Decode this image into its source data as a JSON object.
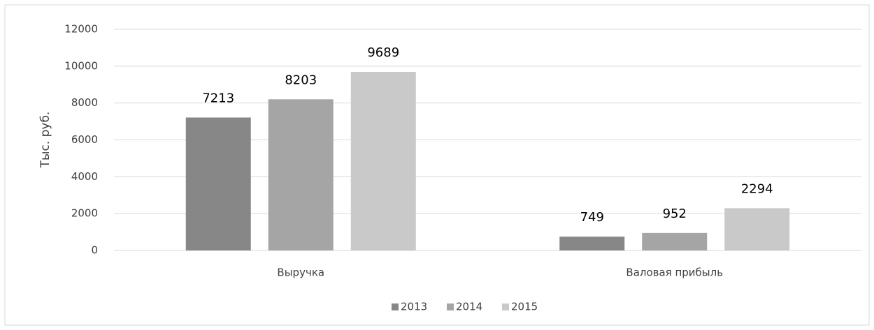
{
  "chart_data": {
    "type": "bar",
    "y_label": "Тыс. руб.",
    "categories": [
      "Выручка",
      "Валовая прибыль"
    ],
    "series": [
      {
        "name": "2013",
        "color": "#878787",
        "values": [
          7213,
          749
        ]
      },
      {
        "name": "2014",
        "color": "#a5a5a5",
        "values": [
          8203,
          952
        ]
      },
      {
        "name": "2015",
        "color": "#c9c9c9",
        "values": [
          9689,
          2294
        ]
      }
    ],
    "ylim": [
      0,
      12000
    ],
    "yticks": [
      0,
      2000,
      4000,
      6000,
      8000,
      10000,
      12000
    ],
    "grid": true,
    "legend": "bottom"
  }
}
